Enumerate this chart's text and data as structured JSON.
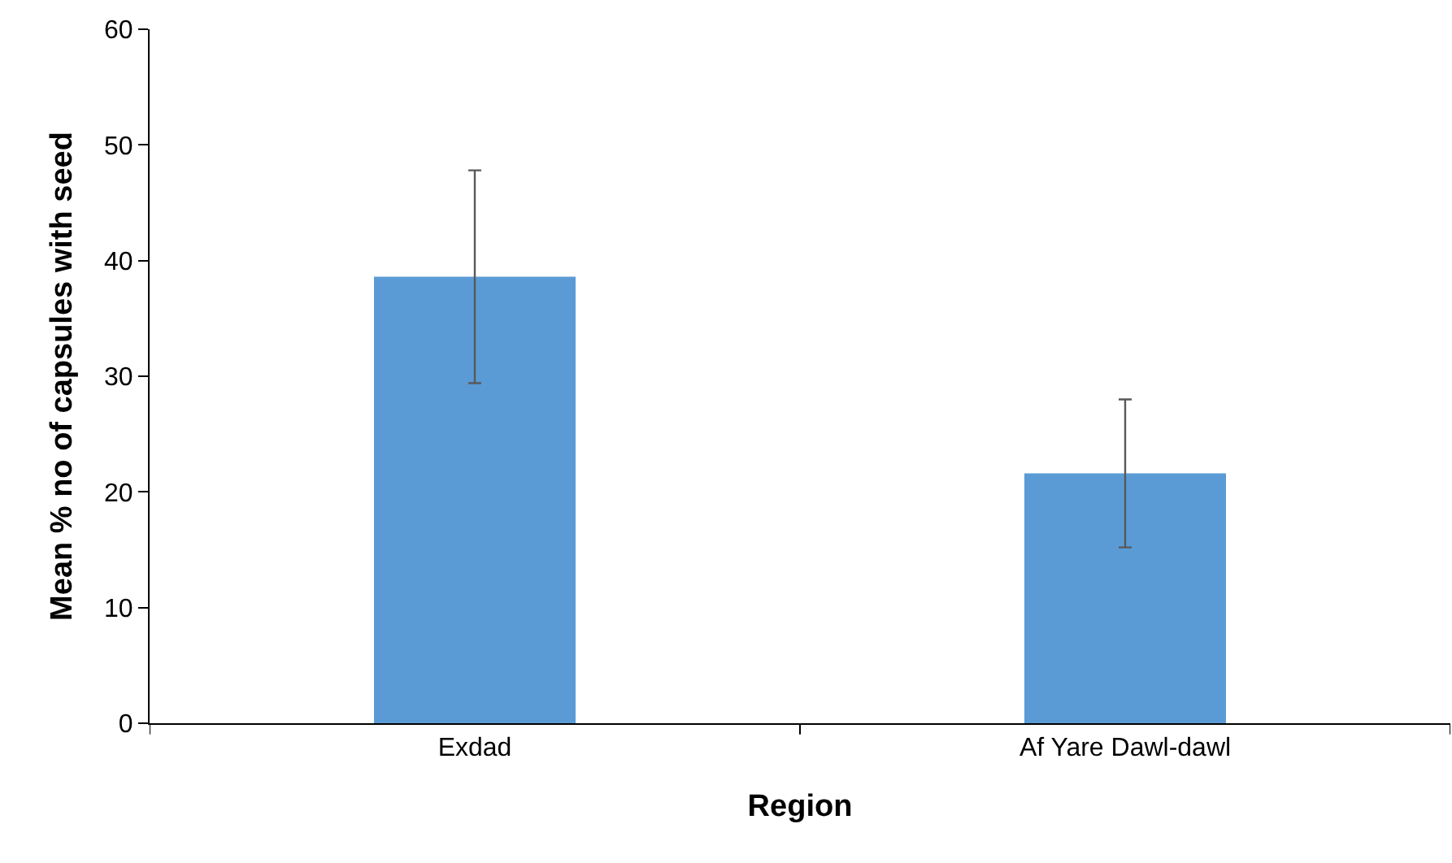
{
  "chart_data": {
    "type": "bar",
    "xlabel": "Region",
    "ylabel": "Mean % no of capsules with seed",
    "categories": [
      "Exdad",
      "Af Yare Dawl-dawl"
    ],
    "values": [
      38.6,
      21.6
    ],
    "errors": [
      9.2,
      6.4
    ],
    "color": "#5b9bd5",
    "ylim": [
      0,
      60
    ],
    "yticks": [
      0,
      10,
      20,
      30,
      40,
      50,
      60
    ],
    "grid": false
  }
}
